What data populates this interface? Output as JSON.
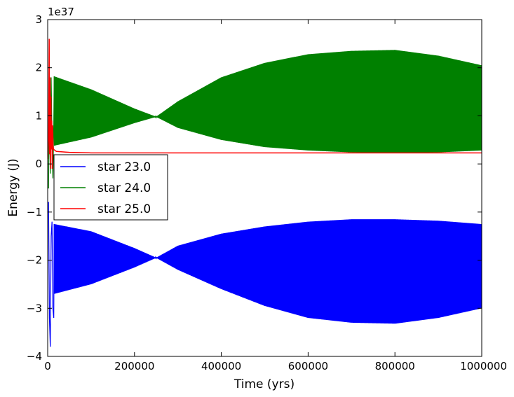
{
  "chart_data": {
    "type": "line",
    "title": "",
    "xlabel": "Time (yrs)",
    "ylabel": "Energy (J)",
    "y_offset_text": "1e37",
    "y_scale": 1e+37,
    "xlim": [
      0,
      1000000
    ],
    "ylim": [
      -4,
      3
    ],
    "x_ticks": [
      0,
      200000,
      400000,
      600000,
      800000,
      1000000
    ],
    "x_tick_labels": [
      "0",
      "200000",
      "400000",
      "600000",
      "800000",
      "1000000"
    ],
    "y_ticks": [
      -4,
      -3,
      -2,
      -1,
      0,
      1,
      2,
      3
    ],
    "y_tick_labels": [
      "−4",
      "−3",
      "−2",
      "−1",
      "0",
      "1",
      "2",
      "3"
    ],
    "grid": false,
    "legend_position": "center-left",
    "series": [
      {
        "name": "star 23.0",
        "color": "#0000ff",
        "style": "oscillating band",
        "x": [
          15000,
          100000,
          200000,
          250000,
          300000,
          400000,
          500000,
          600000,
          700000,
          800000,
          900000,
          1000000
        ],
        "y_upper": [
          -1.25,
          -1.4,
          -1.75,
          -1.95,
          -1.7,
          -1.45,
          -1.3,
          -1.2,
          -1.15,
          -1.15,
          -1.18,
          -1.25
        ],
        "y_lower": [
          -2.7,
          -2.5,
          -2.15,
          -1.95,
          -2.2,
          -2.6,
          -2.95,
          -3.2,
          -3.3,
          -3.32,
          -3.2,
          -3.0
        ],
        "early_spikes": {
          "x": [
            2000,
            4000,
            6000,
            8000,
            10000,
            12000,
            14000
          ],
          "y": [
            -0.8,
            -3.2,
            -3.8,
            -1.5,
            -1.2,
            -3.0,
            -3.2
          ]
        }
      },
      {
        "name": "star 24.0",
        "color": "#008000",
        "style": "oscillating band",
        "x": [
          15000,
          100000,
          200000,
          250000,
          300000,
          400000,
          500000,
          600000,
          700000,
          800000,
          900000,
          1000000
        ],
        "y_upper": [
          1.82,
          1.55,
          1.15,
          0.98,
          1.3,
          1.8,
          2.1,
          2.28,
          2.35,
          2.37,
          2.25,
          2.05
        ],
        "y_lower": [
          0.38,
          0.55,
          0.85,
          0.98,
          0.75,
          0.5,
          0.35,
          0.28,
          0.24,
          0.22,
          0.24,
          0.28
        ],
        "early_spikes": {
          "x": [
            2000,
            4000,
            6000,
            8000,
            10000,
            12000,
            14000
          ],
          "y": [
            -0.5,
            1.5,
            -0.2,
            1.8,
            0.5,
            -0.3,
            0.8
          ]
        }
      },
      {
        "name": "star 25.0",
        "color": "#ff0000",
        "style": "line",
        "x": [
          0,
          2000,
          3500,
          4500,
          5500,
          6500,
          7500,
          8500,
          9500,
          10500,
          11500,
          12500,
          14000,
          20000,
          50000,
          100000,
          200000,
          400000,
          600000,
          800000,
          1000000
        ],
        "y": [
          0.1,
          0.5,
          2.6,
          0.2,
          1.8,
          -0.1,
          1.4,
          0.3,
          0.9,
          -0.1,
          0.8,
          0.35,
          0.3,
          0.26,
          0.24,
          0.23,
          0.23,
          0.23,
          0.23,
          0.23,
          0.23
        ]
      }
    ]
  }
}
